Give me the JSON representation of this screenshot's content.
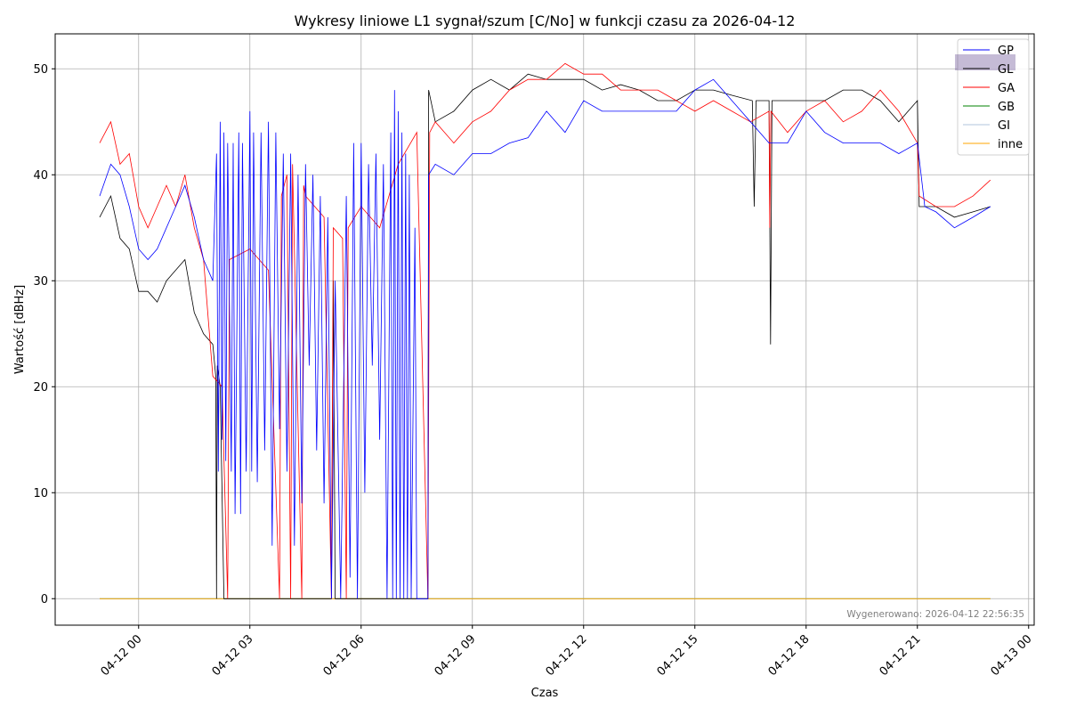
{
  "chart_data": {
    "type": "line",
    "title": "Wykresy liniowe L1 sygnał/szum [C/No] w funkcji czasu za 2026-04-12",
    "xlabel": "Czas",
    "ylabel": "Wartość [dBHz]",
    "x_unit": "hours since 2026-04-12 00:00",
    "xlim": [
      -2.25,
      24.15
    ],
    "ylim": [
      -2.5,
      53.3
    ],
    "grid": true,
    "legend_position": "top-right",
    "x_ticks": [
      {
        "value": 0,
        "label": "04-12 00"
      },
      {
        "value": 3,
        "label": "04-12 03"
      },
      {
        "value": 6,
        "label": "04-12 06"
      },
      {
        "value": 9,
        "label": "04-12 09"
      },
      {
        "value": 12,
        "label": "04-12 12"
      },
      {
        "value": 15,
        "label": "04-12 15"
      },
      {
        "value": 18,
        "label": "04-12 18"
      },
      {
        "value": 21,
        "label": "04-12 21"
      },
      {
        "value": 24,
        "label": "04-13 00"
      }
    ],
    "y_ticks": [
      {
        "value": 0,
        "label": "0"
      },
      {
        "value": 10,
        "label": "10"
      },
      {
        "value": 20,
        "label": "20"
      },
      {
        "value": 30,
        "label": "30"
      },
      {
        "value": 40,
        "label": "40"
      },
      {
        "value": 50,
        "label": "50"
      }
    ],
    "annotation": "Wygenerowano: 2026-04-12 22:56:35",
    "series": [
      {
        "name": "GB",
        "color": "#008000",
        "points": [
          [
            -1.05,
            0
          ],
          [
            22.97,
            0
          ]
        ]
      },
      {
        "name": "GI",
        "color": "#b0c4de",
        "points": [
          [
            -1.05,
            0
          ],
          [
            22.97,
            0
          ]
        ]
      },
      {
        "name": "inne",
        "color": "#ffa500",
        "points": [
          [
            -1.05,
            0
          ],
          [
            22.97,
            0
          ]
        ]
      },
      {
        "name": "GL",
        "color": "#000000",
        "points": [
          [
            -1.05,
            36
          ],
          [
            -0.75,
            38
          ],
          [
            -0.5,
            34
          ],
          [
            -0.25,
            33
          ],
          [
            0,
            29
          ],
          [
            0.25,
            29
          ],
          [
            0.5,
            28
          ],
          [
            0.75,
            30
          ],
          [
            1,
            31
          ],
          [
            1.25,
            32
          ],
          [
            1.5,
            27
          ],
          [
            1.75,
            25
          ],
          [
            2,
            24
          ],
          [
            2.08,
            21
          ],
          [
            2.1,
            0
          ],
          [
            2.12,
            22
          ],
          [
            2.2,
            20
          ],
          [
            2.3,
            0
          ],
          [
            5.2,
            0
          ],
          [
            5.25,
            30
          ],
          [
            5.3,
            0
          ],
          [
            7.8,
            0
          ],
          [
            7.82,
            48
          ],
          [
            8,
            45
          ],
          [
            8.5,
            46
          ],
          [
            9,
            48
          ],
          [
            9.5,
            49
          ],
          [
            10,
            48
          ],
          [
            10.5,
            49.5
          ],
          [
            11,
            49
          ],
          [
            11.5,
            49
          ],
          [
            12,
            49
          ],
          [
            12.5,
            48
          ],
          [
            13,
            48.5
          ],
          [
            13.5,
            48
          ],
          [
            14,
            47
          ],
          [
            14.5,
            47
          ],
          [
            15,
            48
          ],
          [
            15.5,
            48
          ],
          [
            16,
            47.5
          ],
          [
            16.55,
            47
          ],
          [
            16.6,
            37
          ],
          [
            16.65,
            47
          ],
          [
            17,
            47
          ],
          [
            17.04,
            24
          ],
          [
            17.08,
            47
          ],
          [
            17.5,
            47
          ],
          [
            18,
            47
          ],
          [
            18.5,
            47
          ],
          [
            19,
            48
          ],
          [
            19.5,
            48
          ],
          [
            20,
            47
          ],
          [
            20.5,
            45
          ],
          [
            21,
            47
          ],
          [
            21.05,
            37
          ],
          [
            21.5,
            37
          ],
          [
            22,
            36
          ],
          [
            22.5,
            36.5
          ],
          [
            22.97,
            37
          ]
        ]
      },
      {
        "name": "GA",
        "color": "#ff0000",
        "points": [
          [
            -1.05,
            43
          ],
          [
            -0.75,
            45
          ],
          [
            -0.5,
            41
          ],
          [
            -0.25,
            42
          ],
          [
            0,
            37
          ],
          [
            0.25,
            35
          ],
          [
            0.5,
            37
          ],
          [
            0.75,
            39
          ],
          [
            1,
            37
          ],
          [
            1.25,
            40
          ],
          [
            1.5,
            35
          ],
          [
            1.75,
            32
          ],
          [
            2,
            21
          ],
          [
            2.25,
            20
          ],
          [
            2.4,
            0
          ],
          [
            2.45,
            32
          ],
          [
            3,
            33
          ],
          [
            3.5,
            31
          ],
          [
            3.8,
            0
          ],
          [
            3.85,
            38
          ],
          [
            4,
            40
          ],
          [
            4.1,
            0
          ],
          [
            4.15,
            41
          ],
          [
            4.4,
            0
          ],
          [
            4.45,
            39
          ],
          [
            4.5,
            38
          ],
          [
            5,
            36
          ],
          [
            5.2,
            0
          ],
          [
            5.25,
            35
          ],
          [
            5.5,
            34
          ],
          [
            5.6,
            0
          ],
          [
            5.65,
            35
          ],
          [
            6,
            37
          ],
          [
            6.5,
            35
          ],
          [
            7,
            41
          ],
          [
            7.5,
            44
          ],
          [
            7.8,
            0
          ],
          [
            7.85,
            44
          ],
          [
            8,
            45
          ],
          [
            8.5,
            43
          ],
          [
            9,
            45
          ],
          [
            9.5,
            46
          ],
          [
            10,
            48
          ],
          [
            10.5,
            49
          ],
          [
            11,
            49
          ],
          [
            11.5,
            50.5
          ],
          [
            12,
            49.5
          ],
          [
            12.5,
            49.5
          ],
          [
            13,
            48
          ],
          [
            13.5,
            48
          ],
          [
            14,
            48
          ],
          [
            14.5,
            47
          ],
          [
            15,
            46
          ],
          [
            15.5,
            47
          ],
          [
            16,
            46
          ],
          [
            16.5,
            45
          ],
          [
            17,
            46
          ],
          [
            17.02,
            35
          ],
          [
            17.05,
            46
          ],
          [
            17.5,
            44
          ],
          [
            18,
            46
          ],
          [
            18.5,
            47
          ],
          [
            19,
            45
          ],
          [
            19.5,
            46
          ],
          [
            20,
            48
          ],
          [
            20.5,
            46
          ],
          [
            21,
            43
          ],
          [
            21.05,
            38
          ],
          [
            21.5,
            37
          ],
          [
            22,
            37
          ],
          [
            22.5,
            38
          ],
          [
            22.97,
            39.5
          ]
        ]
      },
      {
        "name": "GP",
        "color": "#0000ff",
        "points": [
          [
            -1.05,
            38
          ],
          [
            -0.75,
            41
          ],
          [
            -0.5,
            40
          ],
          [
            -0.25,
            37
          ],
          [
            0,
            33
          ],
          [
            0.25,
            32
          ],
          [
            0.5,
            33
          ],
          [
            0.75,
            35
          ],
          [
            1,
            37
          ],
          [
            1.25,
            39
          ],
          [
            1.5,
            36
          ],
          [
            1.75,
            32
          ],
          [
            2,
            30
          ],
          [
            2.1,
            42
          ],
          [
            2.15,
            12
          ],
          [
            2.2,
            45
          ],
          [
            2.25,
            15
          ],
          [
            2.3,
            44
          ],
          [
            2.35,
            13
          ],
          [
            2.4,
            43
          ],
          [
            2.5,
            12
          ],
          [
            2.55,
            43
          ],
          [
            2.6,
            8
          ],
          [
            2.7,
            44
          ],
          [
            2.75,
            8
          ],
          [
            2.8,
            43
          ],
          [
            2.9,
            12
          ],
          [
            3.0,
            46
          ],
          [
            3.05,
            12
          ],
          [
            3.1,
            44
          ],
          [
            3.2,
            11
          ],
          [
            3.3,
            44
          ],
          [
            3.4,
            14
          ],
          [
            3.5,
            45
          ],
          [
            3.6,
            5
          ],
          [
            3.7,
            44
          ],
          [
            3.8,
            16
          ],
          [
            3.9,
            42
          ],
          [
            4.0,
            12
          ],
          [
            4.1,
            42
          ],
          [
            4.2,
            5
          ],
          [
            4.3,
            40
          ],
          [
            4.4,
            9
          ],
          [
            4.5,
            41
          ],
          [
            4.6,
            22
          ],
          [
            4.7,
            40
          ],
          [
            4.8,
            14
          ],
          [
            4.9,
            38
          ],
          [
            5.0,
            9
          ],
          [
            5.1,
            36
          ],
          [
            5.2,
            0
          ],
          [
            5.3,
            30
          ],
          [
            5.45,
            0
          ],
          [
            5.6,
            38
          ],
          [
            5.7,
            2
          ],
          [
            5.8,
            43
          ],
          [
            5.9,
            0
          ],
          [
            6.0,
            43
          ],
          [
            6.1,
            10
          ],
          [
            6.2,
            41
          ],
          [
            6.3,
            22
          ],
          [
            6.4,
            42
          ],
          [
            6.5,
            15
          ],
          [
            6.6,
            41
          ],
          [
            6.7,
            0
          ],
          [
            6.8,
            44
          ],
          [
            6.85,
            0
          ],
          [
            6.9,
            48
          ],
          [
            6.95,
            0
          ],
          [
            7.0,
            46
          ],
          [
            7.05,
            0
          ],
          [
            7.1,
            44
          ],
          [
            7.15,
            0
          ],
          [
            7.2,
            42
          ],
          [
            7.25,
            0
          ],
          [
            7.3,
            40
          ],
          [
            7.35,
            0
          ],
          [
            7.45,
            35
          ],
          [
            7.5,
            0
          ],
          [
            7.8,
            0
          ],
          [
            7.82,
            40
          ],
          [
            8,
            41
          ],
          [
            8.5,
            40
          ],
          [
            9,
            42
          ],
          [
            9.5,
            42
          ],
          [
            10,
            43
          ],
          [
            10.5,
            43.5
          ],
          [
            11,
            46
          ],
          [
            11.5,
            44
          ],
          [
            12,
            47
          ],
          [
            12.5,
            46
          ],
          [
            13,
            46
          ],
          [
            13.5,
            46
          ],
          [
            14,
            46
          ],
          [
            14.5,
            46
          ],
          [
            15,
            48
          ],
          [
            15.5,
            49
          ],
          [
            16,
            47
          ],
          [
            16.5,
            45
          ],
          [
            17,
            43
          ],
          [
            17.5,
            43
          ],
          [
            18,
            46
          ],
          [
            18.5,
            44
          ],
          [
            19,
            43
          ],
          [
            19.5,
            43
          ],
          [
            20,
            43
          ],
          [
            20.5,
            42
          ],
          [
            21,
            43
          ],
          [
            21.2,
            37
          ],
          [
            21.5,
            36.5
          ],
          [
            22,
            35
          ],
          [
            22.5,
            36
          ],
          [
            22.97,
            37
          ]
        ]
      }
    ],
    "legend": [
      {
        "name": "GP",
        "color": "#0000ff"
      },
      {
        "name": "GL",
        "color": "#000000"
      },
      {
        "name": "GA",
        "color": "#ff0000"
      },
      {
        "name": "GB",
        "color": "#008000"
      },
      {
        "name": "GI",
        "color": "#b0c4de"
      },
      {
        "name": "inne",
        "color": "#ffa500"
      }
    ]
  }
}
